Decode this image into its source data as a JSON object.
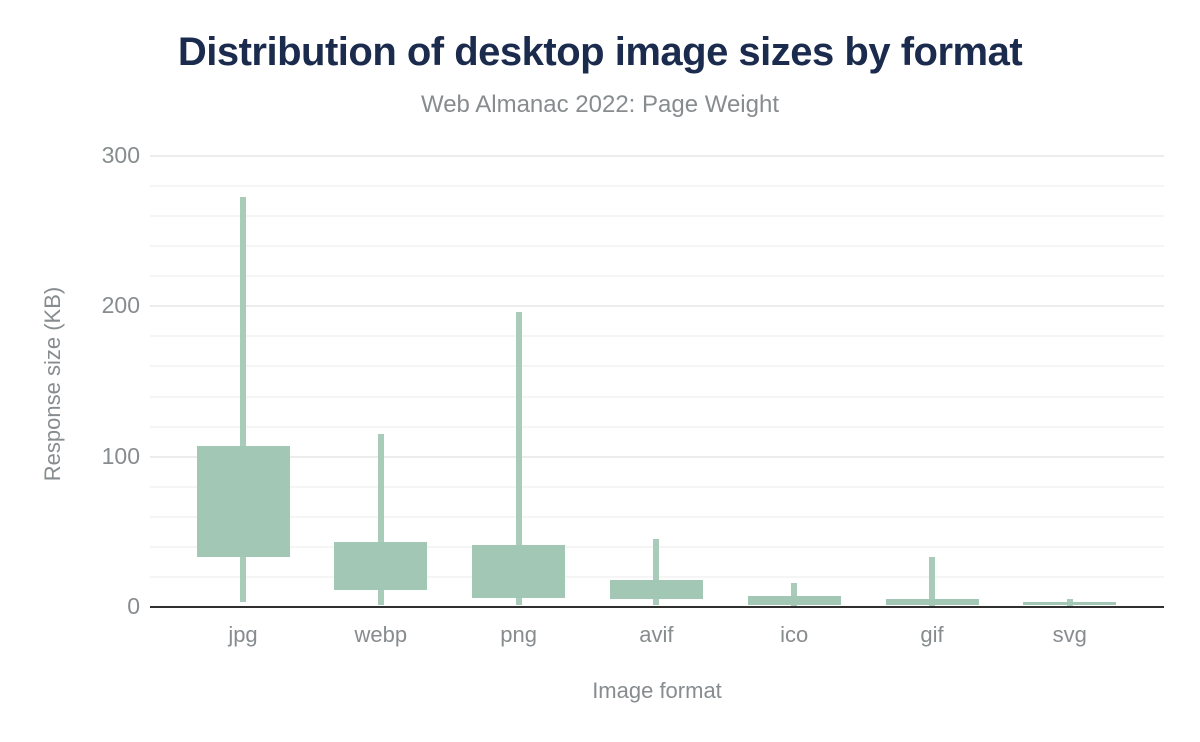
{
  "chart_data": {
    "type": "boxplot",
    "title": "Distribution of desktop image sizes by format",
    "subtitle": "Web Almanac 2022: Page Weight",
    "xlabel": "Image format",
    "ylabel": "Response size (KB)",
    "ylim": [
      0,
      300
    ],
    "yticks": [
      0,
      100,
      200,
      300
    ],
    "minor_grid_step_kb": 20,
    "grid": true,
    "legend": "none",
    "categories": [
      "jpg",
      "webp",
      "png",
      "avif",
      "ico",
      "gif",
      "svg"
    ],
    "series": [
      {
        "name": "desktop",
        "boxes": [
          {
            "category": "jpg",
            "whisker_low": 3,
            "q1": 33,
            "q3": 107,
            "whisker_high": 273
          },
          {
            "category": "webp",
            "whisker_low": 1,
            "q1": 11,
            "q3": 43,
            "whisker_high": 115
          },
          {
            "category": "png",
            "whisker_low": 1,
            "q1": 6,
            "q3": 41,
            "whisker_high": 196
          },
          {
            "category": "avif",
            "whisker_low": 1,
            "q1": 5,
            "q3": 18,
            "whisker_high": 45
          },
          {
            "category": "ico",
            "whisker_low": 0,
            "q1": 1,
            "q3": 7,
            "whisker_high": 16
          },
          {
            "category": "gif",
            "whisker_low": 0,
            "q1": 1,
            "q3": 5,
            "whisker_high": 33
          },
          {
            "category": "svg",
            "whisker_low": 0,
            "q1": 1,
            "q3": 3,
            "whisker_high": 5
          }
        ]
      }
    ],
    "colors": {
      "box_fill": "#a3c7b5",
      "whisker": "#a9cbba",
      "axis_line": "#2f2f2f",
      "grid_major": "#ececec",
      "grid_minor": "#f5f5f5",
      "title": "#1b2b4d",
      "muted_text": "#878c8f",
      "background": "#ffffff"
    }
  }
}
